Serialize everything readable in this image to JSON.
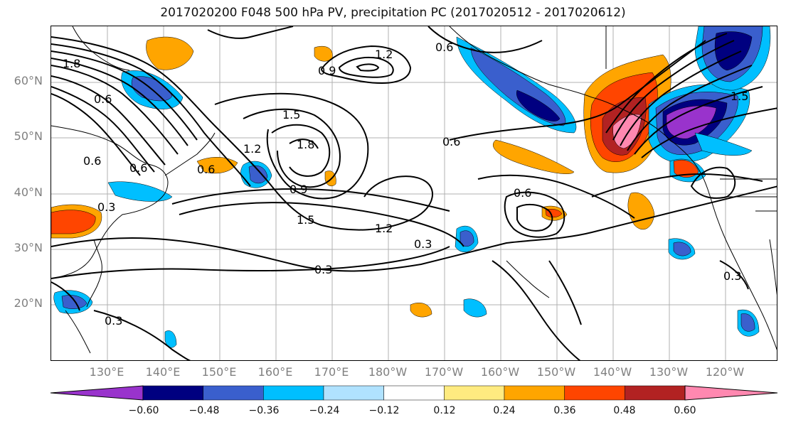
{
  "title": "2017020200 F048 500 hPa PV, precipitation PC (2017020512 - 2017020612)",
  "lat_labels": [
    "60°N",
    "50°N",
    "40°N",
    "30°N",
    "20°N"
  ],
  "lon_labels": [
    "130°E",
    "140°E",
    "150°E",
    "160°E",
    "170°E",
    "180°W",
    "170°W",
    "160°W",
    "150°W",
    "140°W",
    "130°W",
    "120°W"
  ],
  "contour_labels": [
    "1.8",
    "0.6",
    "1.2",
    "0.9",
    "0.6",
    "1.5",
    "1.8",
    "1.2",
    "0.6",
    "0.6",
    "0.6",
    "0.3",
    "0.9",
    "1.5",
    "1.2",
    "0.3",
    "0.3",
    "0.3",
    "0.6",
    "1.5",
    "0.6",
    "0.3"
  ],
  "colorbar": {
    "tick_labels": [
      "−0.60",
      "−0.48",
      "−0.36",
      "−0.24",
      "−0.12",
      "0.12",
      "0.24",
      "0.36",
      "0.48",
      "0.60"
    ],
    "colors": [
      "#9933cc",
      "#000080",
      "#3a5fcd",
      "#00bfff",
      "#b0e2ff",
      "#ffffff",
      "#ffeb80",
      "#ffa500",
      "#ff4500",
      "#b22222",
      "#ff88b0"
    ]
  }
}
